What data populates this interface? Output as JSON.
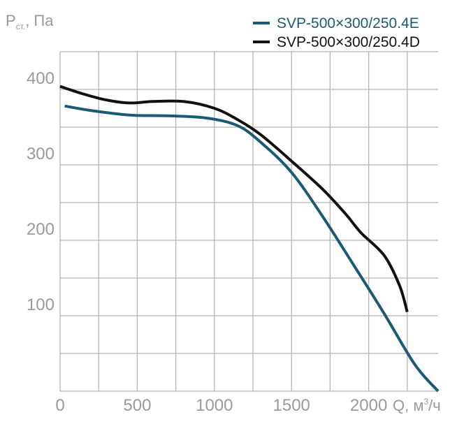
{
  "chart_data": {
    "type": "line",
    "y_axis_label": {
      "symbol": "P",
      "subscript": "ст.",
      "rest": ", Па"
    },
    "x_axis_label": {
      "base": "Q, м",
      "superscript": "3",
      "rest": "/ч"
    },
    "x_ticks": [
      "0",
      "500",
      "1000",
      "1500",
      "2000"
    ],
    "x_tick_values": [
      0,
      500,
      1000,
      1500,
      2000
    ],
    "y_ticks": [
      "100",
      "200",
      "300",
      "400"
    ],
    "y_tick_values": [
      100,
      200,
      300,
      400
    ],
    "x_grid_step": 250,
    "y_grid_step": 50,
    "xlim": [
      0,
      2450
    ],
    "ylim": [
      0,
      450
    ],
    "grid": true,
    "legend_position": "top-right",
    "series": [
      {
        "name": "SVP-500×300/250.4E",
        "color": "#1b5a74",
        "x": [
          30,
          200,
          450,
          700,
          950,
          1150,
          1300,
          1500,
          1700,
          1900,
          2100,
          2300,
          2450
        ],
        "y": [
          378,
          372,
          366,
          365,
          362,
          352,
          330,
          290,
          232,
          168,
          103,
          35,
          0
        ]
      },
      {
        "name": "SVP-500×300/250.4D",
        "color": "#111111",
        "x": [
          0,
          150,
          300,
          450,
          600,
          800,
          1000,
          1150,
          1300,
          1500,
          1700,
          1850,
          1950,
          2100,
          2200,
          2250
        ],
        "y": [
          404,
          394,
          386,
          382,
          384,
          384,
          375,
          360,
          340,
          305,
          268,
          235,
          210,
          180,
          140,
          105
        ]
      }
    ]
  }
}
